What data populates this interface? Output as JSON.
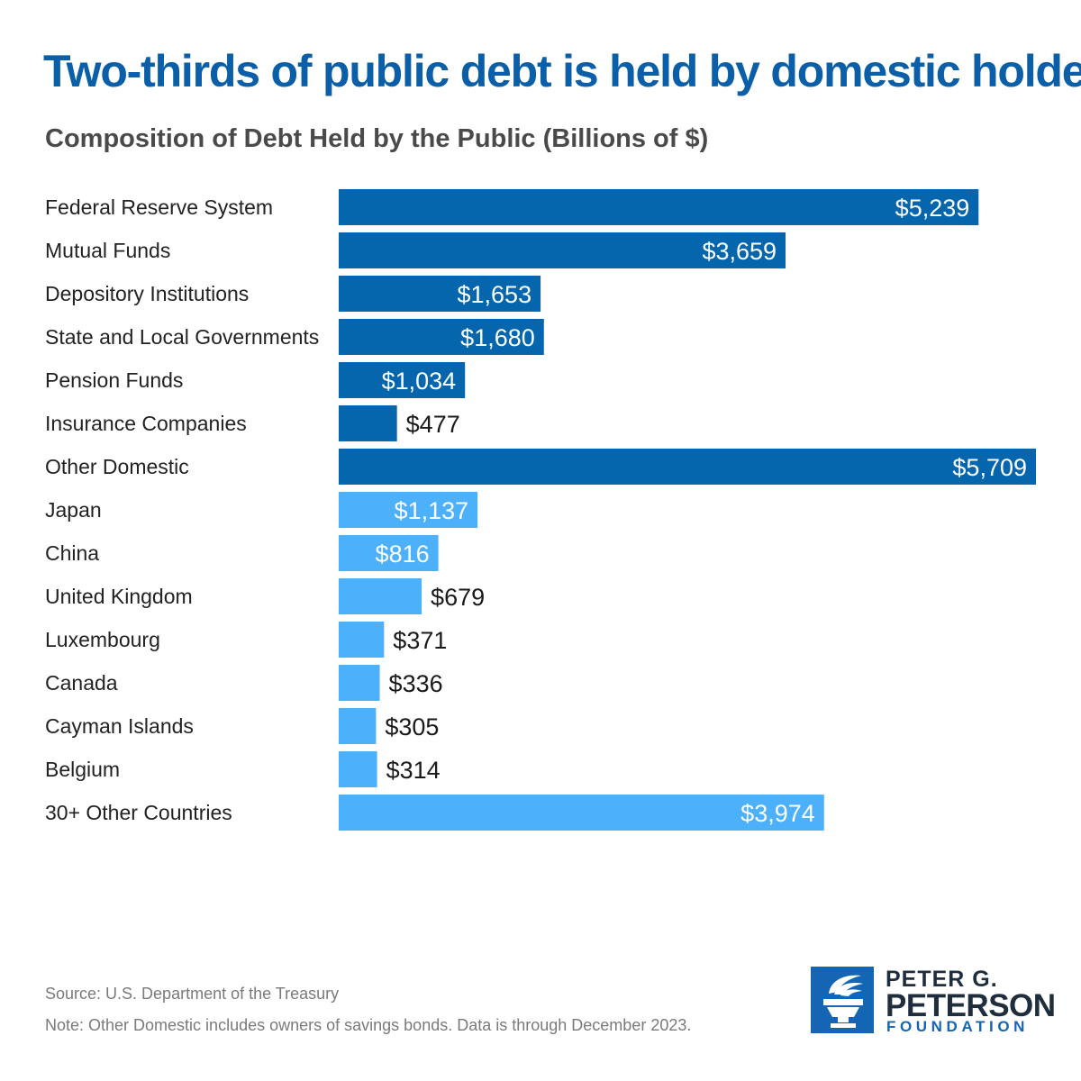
{
  "title": "Two-thirds of public debt is held by domestic holders",
  "subtitle": "Composition of Debt Held by the Public (Billions of $)",
  "colors": {
    "domestic": "#0565ad",
    "foreign": "#4db0fb",
    "title": "#0a5fa8",
    "label_inside": "#ffffff",
    "label_outside": "#1a1a1a"
  },
  "chart_data": {
    "type": "bar",
    "orientation": "horizontal",
    "title": "Composition of Debt Held by the Public (Billions of $)",
    "xlabel": "",
    "ylabel": "",
    "xlim": [
      0,
      5709
    ],
    "grid": false,
    "categories": [
      "Federal Reserve System",
      "Mutual Funds",
      "Depository Institutions",
      "State and Local Governments",
      "Pension Funds",
      "Insurance Companies",
      "Other Domestic",
      "Japan",
      "China",
      "United Kingdom",
      "Luxembourg",
      "Canada",
      "Cayman Islands",
      "Belgium",
      "30+ Other Countries"
    ],
    "values": [
      5239,
      3659,
      1653,
      1680,
      1034,
      477,
      5709,
      1137,
      816,
      679,
      371,
      336,
      305,
      314,
      3974
    ],
    "value_labels": [
      "$5,239",
      "$3,659",
      "$1,653",
      "$1,680",
      "$1,034",
      "$477",
      "$5,709",
      "$1,137",
      "$816",
      "$679",
      "$371",
      "$336",
      "$305",
      "$314",
      "$3,974"
    ],
    "groups": [
      "domestic",
      "domestic",
      "domestic",
      "domestic",
      "domestic",
      "domestic",
      "domestic",
      "foreign",
      "foreign",
      "foreign",
      "foreign",
      "foreign",
      "foreign",
      "foreign",
      "foreign"
    ]
  },
  "footer": {
    "source": "Source: U.S. Department of the Treasury",
    "note": "Note: Other Domestic includes owners of savings bonds. Data is through December 2023."
  },
  "logo": {
    "line1": "PETER G.",
    "line2": "PETERSON",
    "line3": "FOUNDATION",
    "icon": "torch-icon"
  }
}
